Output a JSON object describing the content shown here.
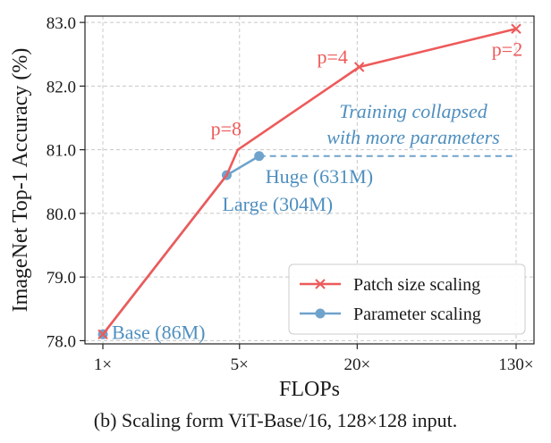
{
  "chart_data": {
    "type": "line",
    "ylabel": "ImageNet Top-1 Accuracy (%)",
    "xlabel": "FLOPs",
    "x_scale": "log",
    "x_ticks": [
      {
        "value": 1,
        "label": "1×"
      },
      {
        "value": 5,
        "label": "5×"
      },
      {
        "value": 20,
        "label": "20×"
      },
      {
        "value": 130,
        "label": "130×"
      }
    ],
    "y_ticks": [
      78.0,
      79.0,
      80.0,
      81.0,
      82.0,
      83.0
    ],
    "y_tick_labels": [
      "78.0",
      "79.0",
      "80.0",
      "81.0",
      "82.0",
      "83.0"
    ],
    "ylim": [
      77.95,
      83.1
    ],
    "grid": true,
    "legend_position": "lower-right",
    "series": [
      {
        "name": "Patch size scaling",
        "color": "#ee5a5a",
        "marker": "x",
        "points": [
          {
            "x": 1,
            "y": 78.1
          },
          {
            "x": 4.3,
            "y": 80.6
          },
          {
            "x": 4.9,
            "y": 81.0
          },
          {
            "x": 20.5,
            "y": 82.3
          },
          {
            "x": 130,
            "y": 82.9
          }
        ]
      },
      {
        "name": "Parameter scaling",
        "color": "#6fa3cc",
        "marker": "o",
        "points": [
          {
            "x": 1,
            "y": 78.1
          },
          {
            "x": 4.3,
            "y": 80.6
          },
          {
            "x": 6.3,
            "y": 80.9
          }
        ],
        "dashed_extension": {
          "from_x": 6.3,
          "to_x": 130,
          "y": 80.9
        }
      }
    ],
    "annotations": [
      {
        "text": "p=8",
        "x": 4.9,
        "y": 81.0,
        "color": "#ee5a5a"
      },
      {
        "text": "p=4",
        "x": 20.5,
        "y": 82.3,
        "color": "#ee5a5a"
      },
      {
        "text": "p=2",
        "x": 130,
        "y": 82.9,
        "color": "#ee5a5a"
      },
      {
        "text": "Base (86M)",
        "x": 1,
        "y": 78.1,
        "color": "#4f8fbf"
      },
      {
        "text": "Large (304M)",
        "x": 4.3,
        "y": 80.6,
        "color": "#4f8fbf"
      },
      {
        "text": "Huge (631M)",
        "x": 6.3,
        "y": 80.9,
        "color": "#4f8fbf"
      }
    ],
    "note_lines": [
      "Training collapsed",
      "with more parameters"
    ],
    "note_color": "#4f8fbf",
    "caption": "(b) Scaling form ViT-Base/16, 128×128 input."
  }
}
